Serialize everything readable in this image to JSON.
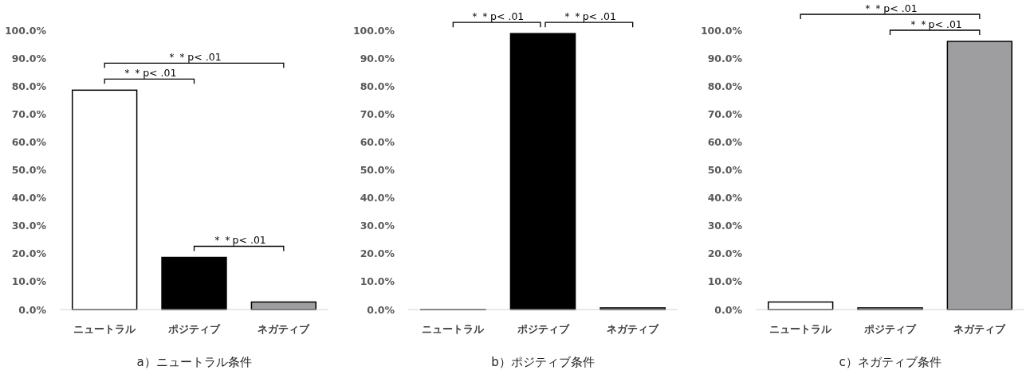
{
  "chart_data": [
    {
      "type": "bar",
      "title": "a）ニュートラル条件",
      "categories": [
        "ニュートラル",
        "ポジティブ",
        "ネガティブ"
      ],
      "values": [
        78.7,
        18.7,
        2.7
      ],
      "colors": [
        "#ffffff",
        "#000000",
        "#9e9d9f"
      ],
      "ylim": [
        0,
        100
      ],
      "yticks": [
        {
          "value": 0,
          "label": "0.0%"
        },
        {
          "value": 10,
          "label": "10.0%"
        },
        {
          "value": 20,
          "label": "20.0%"
        },
        {
          "value": 30,
          "label": "30.0%"
        },
        {
          "value": 40,
          "label": "40.0%"
        },
        {
          "value": 50,
          "label": "50.0%"
        },
        {
          "value": 60,
          "label": "60.0%"
        },
        {
          "value": 70,
          "label": "70.0%"
        },
        {
          "value": 80,
          "label": "80.0%"
        },
        {
          "value": 90,
          "label": "90.0%"
        },
        {
          "value": 100,
          "label": "100.0%"
        }
      ],
      "grid": false,
      "annotations": [
        "＊＊p< .01",
        "＊＊p< .01",
        "＊＊p< .01"
      ]
    },
    {
      "type": "bar",
      "title": "b）ポジティブ条件",
      "categories": [
        "ニュートラル",
        "ポジティブ",
        "ネガティブ"
      ],
      "values": [
        0,
        99.0,
        0.6
      ],
      "colors": [
        "#ffffff",
        "#000000",
        "#9e9d9f"
      ],
      "ylim": [
        0,
        100
      ],
      "yticks": [
        {
          "value": 0,
          "label": "0.0%"
        },
        {
          "value": 10,
          "label": "10.0%"
        },
        {
          "value": 20,
          "label": "20.0%"
        },
        {
          "value": 30,
          "label": "30.0%"
        },
        {
          "value": 40,
          "label": "40.0%"
        },
        {
          "value": 50,
          "label": "50.0%"
        },
        {
          "value": 60,
          "label": "60.0%"
        },
        {
          "value": 70,
          "label": "70.0%"
        },
        {
          "value": 80,
          "label": "80.0%"
        },
        {
          "value": 90,
          "label": "90.0%"
        },
        {
          "value": 100,
          "label": "100.0%"
        }
      ],
      "grid": false,
      "annotations": [
        "＊＊p< .01",
        "＊＊p< .01"
      ]
    },
    {
      "type": "bar",
      "title": "c）ネガティブ条件",
      "categories": [
        "ニュートラル",
        "ポジティブ",
        "ネガティブ"
      ],
      "values": [
        2.7,
        0.6,
        96.2
      ],
      "colors": [
        "#ffffff",
        "#ffffff",
        "#9e9d9f"
      ],
      "ylim": [
        0,
        100
      ],
      "yticks": [
        {
          "value": 0,
          "label": "0.0%"
        },
        {
          "value": 10,
          "label": "10.0%"
        },
        {
          "value": 20,
          "label": "20.0%"
        },
        {
          "value": 30,
          "label": "30.0%"
        },
        {
          "value": 40,
          "label": "40.0%"
        },
        {
          "value": 50,
          "label": "50.0%"
        },
        {
          "value": 60,
          "label": "60.0%"
        },
        {
          "value": 70,
          "label": "70.0%"
        },
        {
          "value": 80,
          "label": "80.0%"
        },
        {
          "value": 90,
          "label": "90.0%"
        },
        {
          "value": 100,
          "label": "100.0%"
        }
      ],
      "grid": false,
      "annotations": [
        "＊＊p< .01",
        "＊＊p< .01"
      ]
    }
  ]
}
